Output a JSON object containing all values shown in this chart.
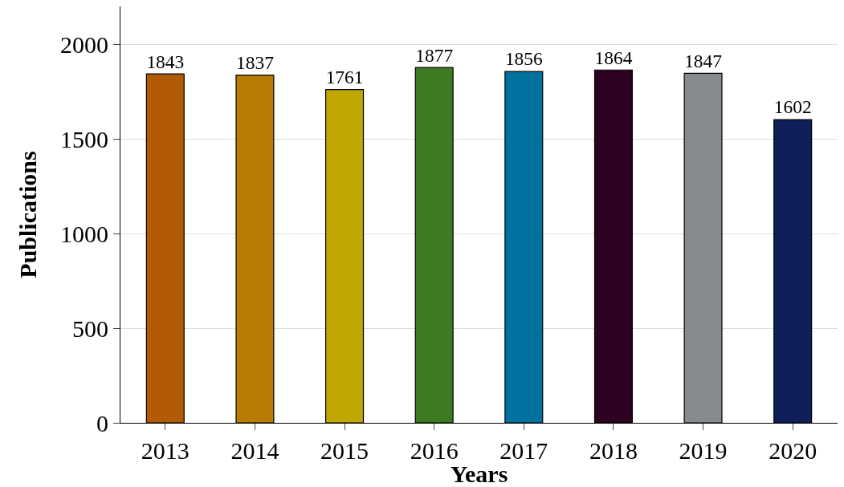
{
  "chart_data": {
    "type": "bar",
    "xlabel": "Years",
    "ylabel": "Publications",
    "categories": [
      "2013",
      "2014",
      "2015",
      "2016",
      "2017",
      "2018",
      "2019",
      "2020"
    ],
    "values": [
      1843,
      1837,
      1761,
      1877,
      1856,
      1864,
      1847,
      1602
    ],
    "colors": [
      "#b35a06",
      "#b87b03",
      "#c0a702",
      "#3e7a1f",
      "#00729f",
      "#2e0321",
      "#888b8d",
      "#0f1f59"
    ],
    "ylim": [
      0,
      2200
    ],
    "yticks": [
      0,
      500,
      1000,
      1500,
      2000
    ],
    "grid": "y",
    "data_labels": true,
    "legend": false
  }
}
